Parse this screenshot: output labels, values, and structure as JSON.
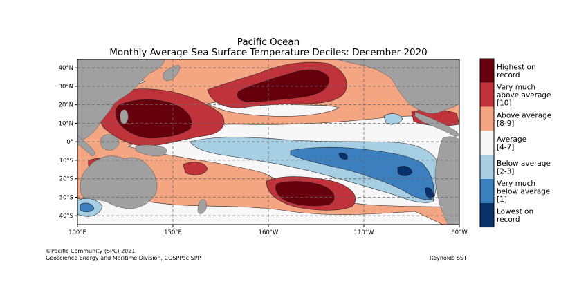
{
  "title": "Pacific Ocean",
  "subtitle": "Monthly Average Sea Surface Temperature Deciles: December 2020",
  "lat_ticks": [
    "40°N",
    "30°N",
    "20°N",
    "10°N",
    "0°",
    "10°S",
    "20°S",
    "30°S",
    "40°S"
  ],
  "lon_ticks": [
    "100°E",
    "150°E",
    "160°W",
    "110°W",
    "60°W"
  ],
  "legend": [
    {
      "lines": [
        "Highest on",
        "record"
      ],
      "color": "#67000d"
    },
    {
      "lines": [
        "Very much",
        "above average",
        "[10]"
      ],
      "color": "#c1333a"
    },
    {
      "lines": [
        "Above average",
        "[8-9]"
      ],
      "color": "#f4a582"
    },
    {
      "lines": [
        "Average",
        "[4-7]"
      ],
      "color": "#f7f7f7"
    },
    {
      "lines": [
        "Below average",
        "[2-3]"
      ],
      "color": "#a6cfe4"
    },
    {
      "lines": [
        "Very much",
        "below average",
        "[1]"
      ],
      "color": "#3b7fbf"
    },
    {
      "lines": [
        "Lowest on",
        "record"
      ],
      "color": "#08306b"
    }
  ],
  "footer": {
    "line1": "©Pacific Community (SPC) 2021",
    "line2": "Geoscience Energy and Maritime Division, COSPPac SPP",
    "source": "Reynolds SST"
  },
  "colors": {
    "land": "#a0a0a0",
    "grid": "#666666"
  }
}
